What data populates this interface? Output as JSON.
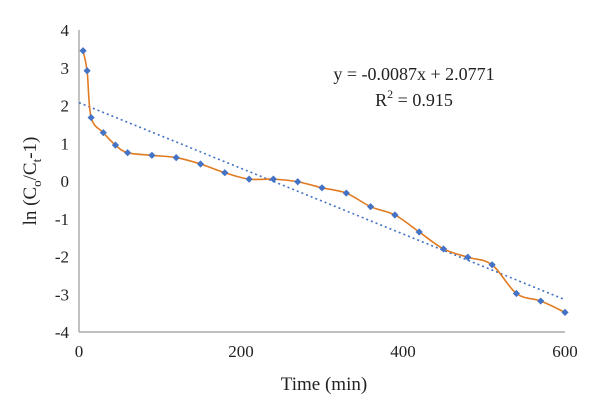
{
  "chart_data": {
    "type": "scatter",
    "title": "",
    "xlabel": "Time (min)",
    "ylabel_main": "ln (C",
    "ylabel_sub1": "o",
    "ylabel_mid": "/C",
    "ylabel_sub2": "t",
    "ylabel_tail": "-1)",
    "xlim": [
      0,
      600
    ],
    "ylim": [
      -4,
      4
    ],
    "x_ticks": [
      "0",
      "200",
      "400",
      "600"
    ],
    "y_ticks": [
      "4",
      "3",
      "2",
      "1",
      "0",
      "-1",
      "-2",
      "-3",
      "-4"
    ],
    "grid": false,
    "series": [
      {
        "x": [
          5,
          10,
          15,
          30,
          45,
          60,
          90,
          120,
          150,
          180,
          210,
          240,
          270,
          300,
          330,
          360,
          390,
          420,
          450,
          480,
          510,
          540,
          570,
          600
        ],
        "y": [
          3.45,
          2.92,
          1.68,
          1.28,
          0.95,
          0.75,
          0.68,
          0.62,
          0.45,
          0.22,
          0.05,
          0.05,
          -0.02,
          -0.18,
          -0.32,
          -0.68,
          -0.9,
          -1.35,
          -1.8,
          -2.02,
          -2.22,
          -2.98,
          -3.18,
          -3.48
        ],
        "color": "#e07b22",
        "marker_color": "#4472c4"
      }
    ],
    "trendline": {
      "slope": -0.0087,
      "intercept": 2.0771,
      "color": "#4472c4",
      "style": "dotted"
    },
    "annotation": {
      "equation": "y = -0.0087x + 2.0771",
      "r2_main": "R",
      "r2_exp": "2",
      "r2_value": " = 0.915"
    }
  }
}
